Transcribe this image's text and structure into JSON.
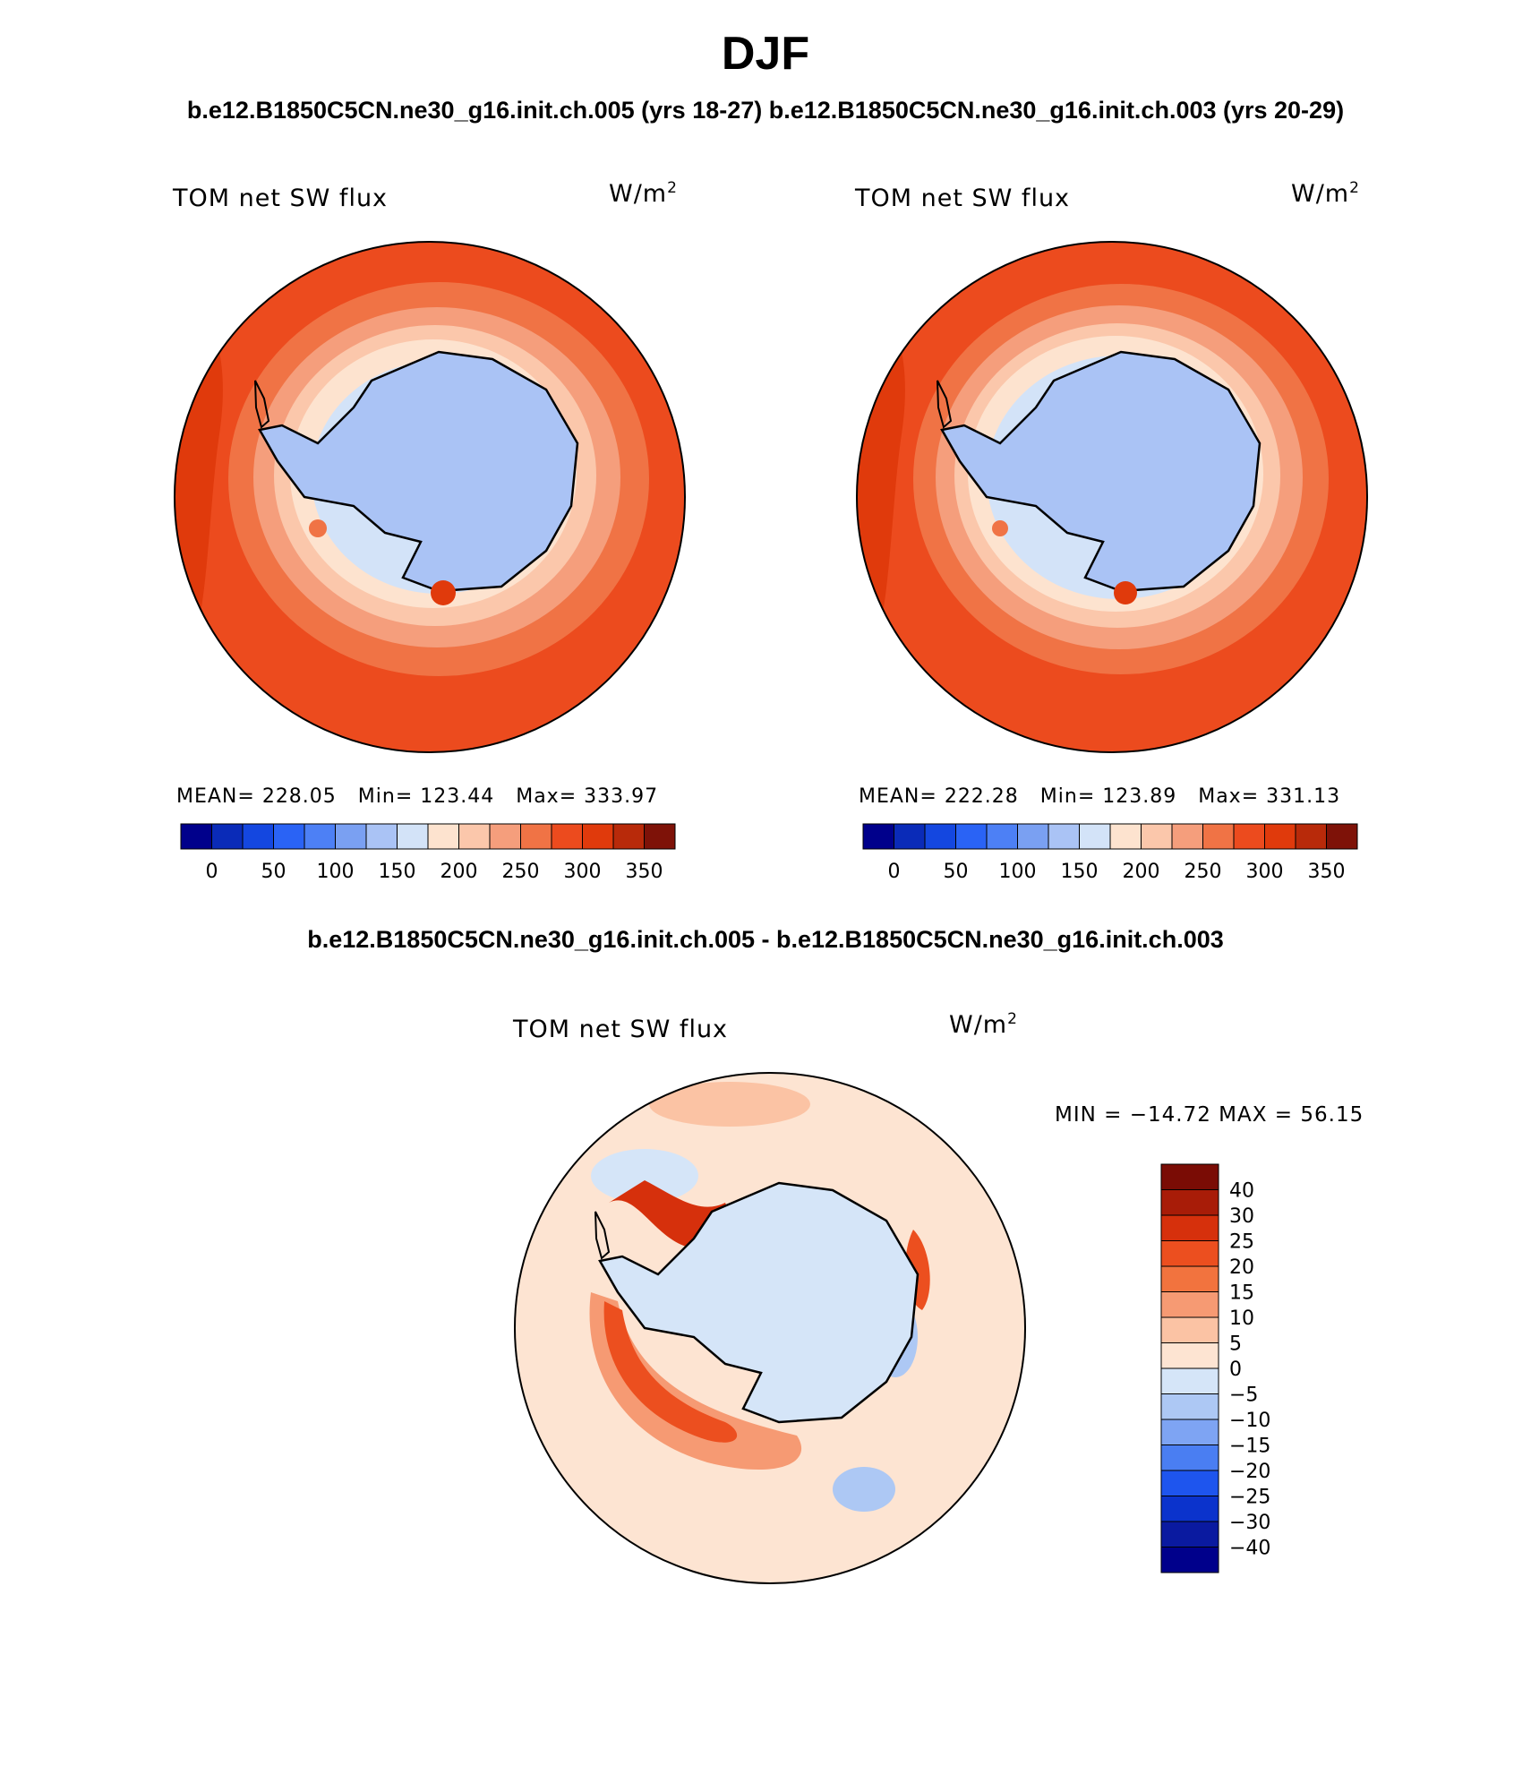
{
  "title": "DJF",
  "subtitle_top": "b.e12.B1850C5CN.ne30_g16.init.ch.005 (yrs 18-27) b.e12.B1850C5CN.ne30_g16.init.ch.003 (yrs 20-29)",
  "subtitle_bottom": "b.e12.B1850C5CN.ne30_g16.init.ch.005 - b.e12.B1850C5CN.ne30_g16.init.ch.003",
  "colors": {
    "abs_scale": [
      "#00008b",
      "#0a2bb8",
      "#1447e0",
      "#2a63f5",
      "#4d80f5",
      "#7aa0f2",
      "#aac3f5",
      "#d3e3f8",
      "#fde3cf",
      "#fbc7ab",
      "#f59e7c",
      "#f07345",
      "#ec4b1e",
      "#e03a0c",
      "#b82a0a",
      "#7e1208"
    ],
    "diff_scale": [
      "#00008b",
      "#0a1aa0",
      "#0b33cc",
      "#1e55ee",
      "#4a7ef2",
      "#7ea4f3",
      "#adc8f4",
      "#d5e5f8",
      "#fde4d2",
      "#fbc3a4",
      "#f69a73",
      "#f2733e",
      "#ec4f1f",
      "#d6300c",
      "#a81c08",
      "#7a0c05"
    ]
  },
  "panels": [
    {
      "name": "case-005",
      "variable": "TOM net SW flux",
      "units": "W/m",
      "units_sup": "2",
      "stats": {
        "mean": "MEAN= 228.05",
        "min": "Min= 123.44",
        "max": "Max= 333.97"
      },
      "colorbar_ticks": [
        "0",
        "50",
        "100",
        "150",
        "200",
        "250",
        "300",
        "350"
      ]
    },
    {
      "name": "case-003",
      "variable": "TOM net SW flux",
      "units": "W/m",
      "units_sup": "2",
      "stats": {
        "mean": "MEAN= 222.28",
        "min": "Min= 123.89",
        "max": "Max= 331.13"
      },
      "colorbar_ticks": [
        "0",
        "50",
        "100",
        "150",
        "200",
        "250",
        "300",
        "350"
      ]
    },
    {
      "name": "difference",
      "variable": "TOM net SW flux",
      "units": "W/m",
      "units_sup": "2",
      "minmax": "MIN = −14.72 MAX =  56.15",
      "colorbar_labels": [
        "40",
        "30",
        "25",
        "20",
        "15",
        "10",
        "5",
        "0",
        "−5",
        "−10",
        "−15",
        "−20",
        "−25",
        "−30",
        "−40"
      ]
    }
  ]
}
